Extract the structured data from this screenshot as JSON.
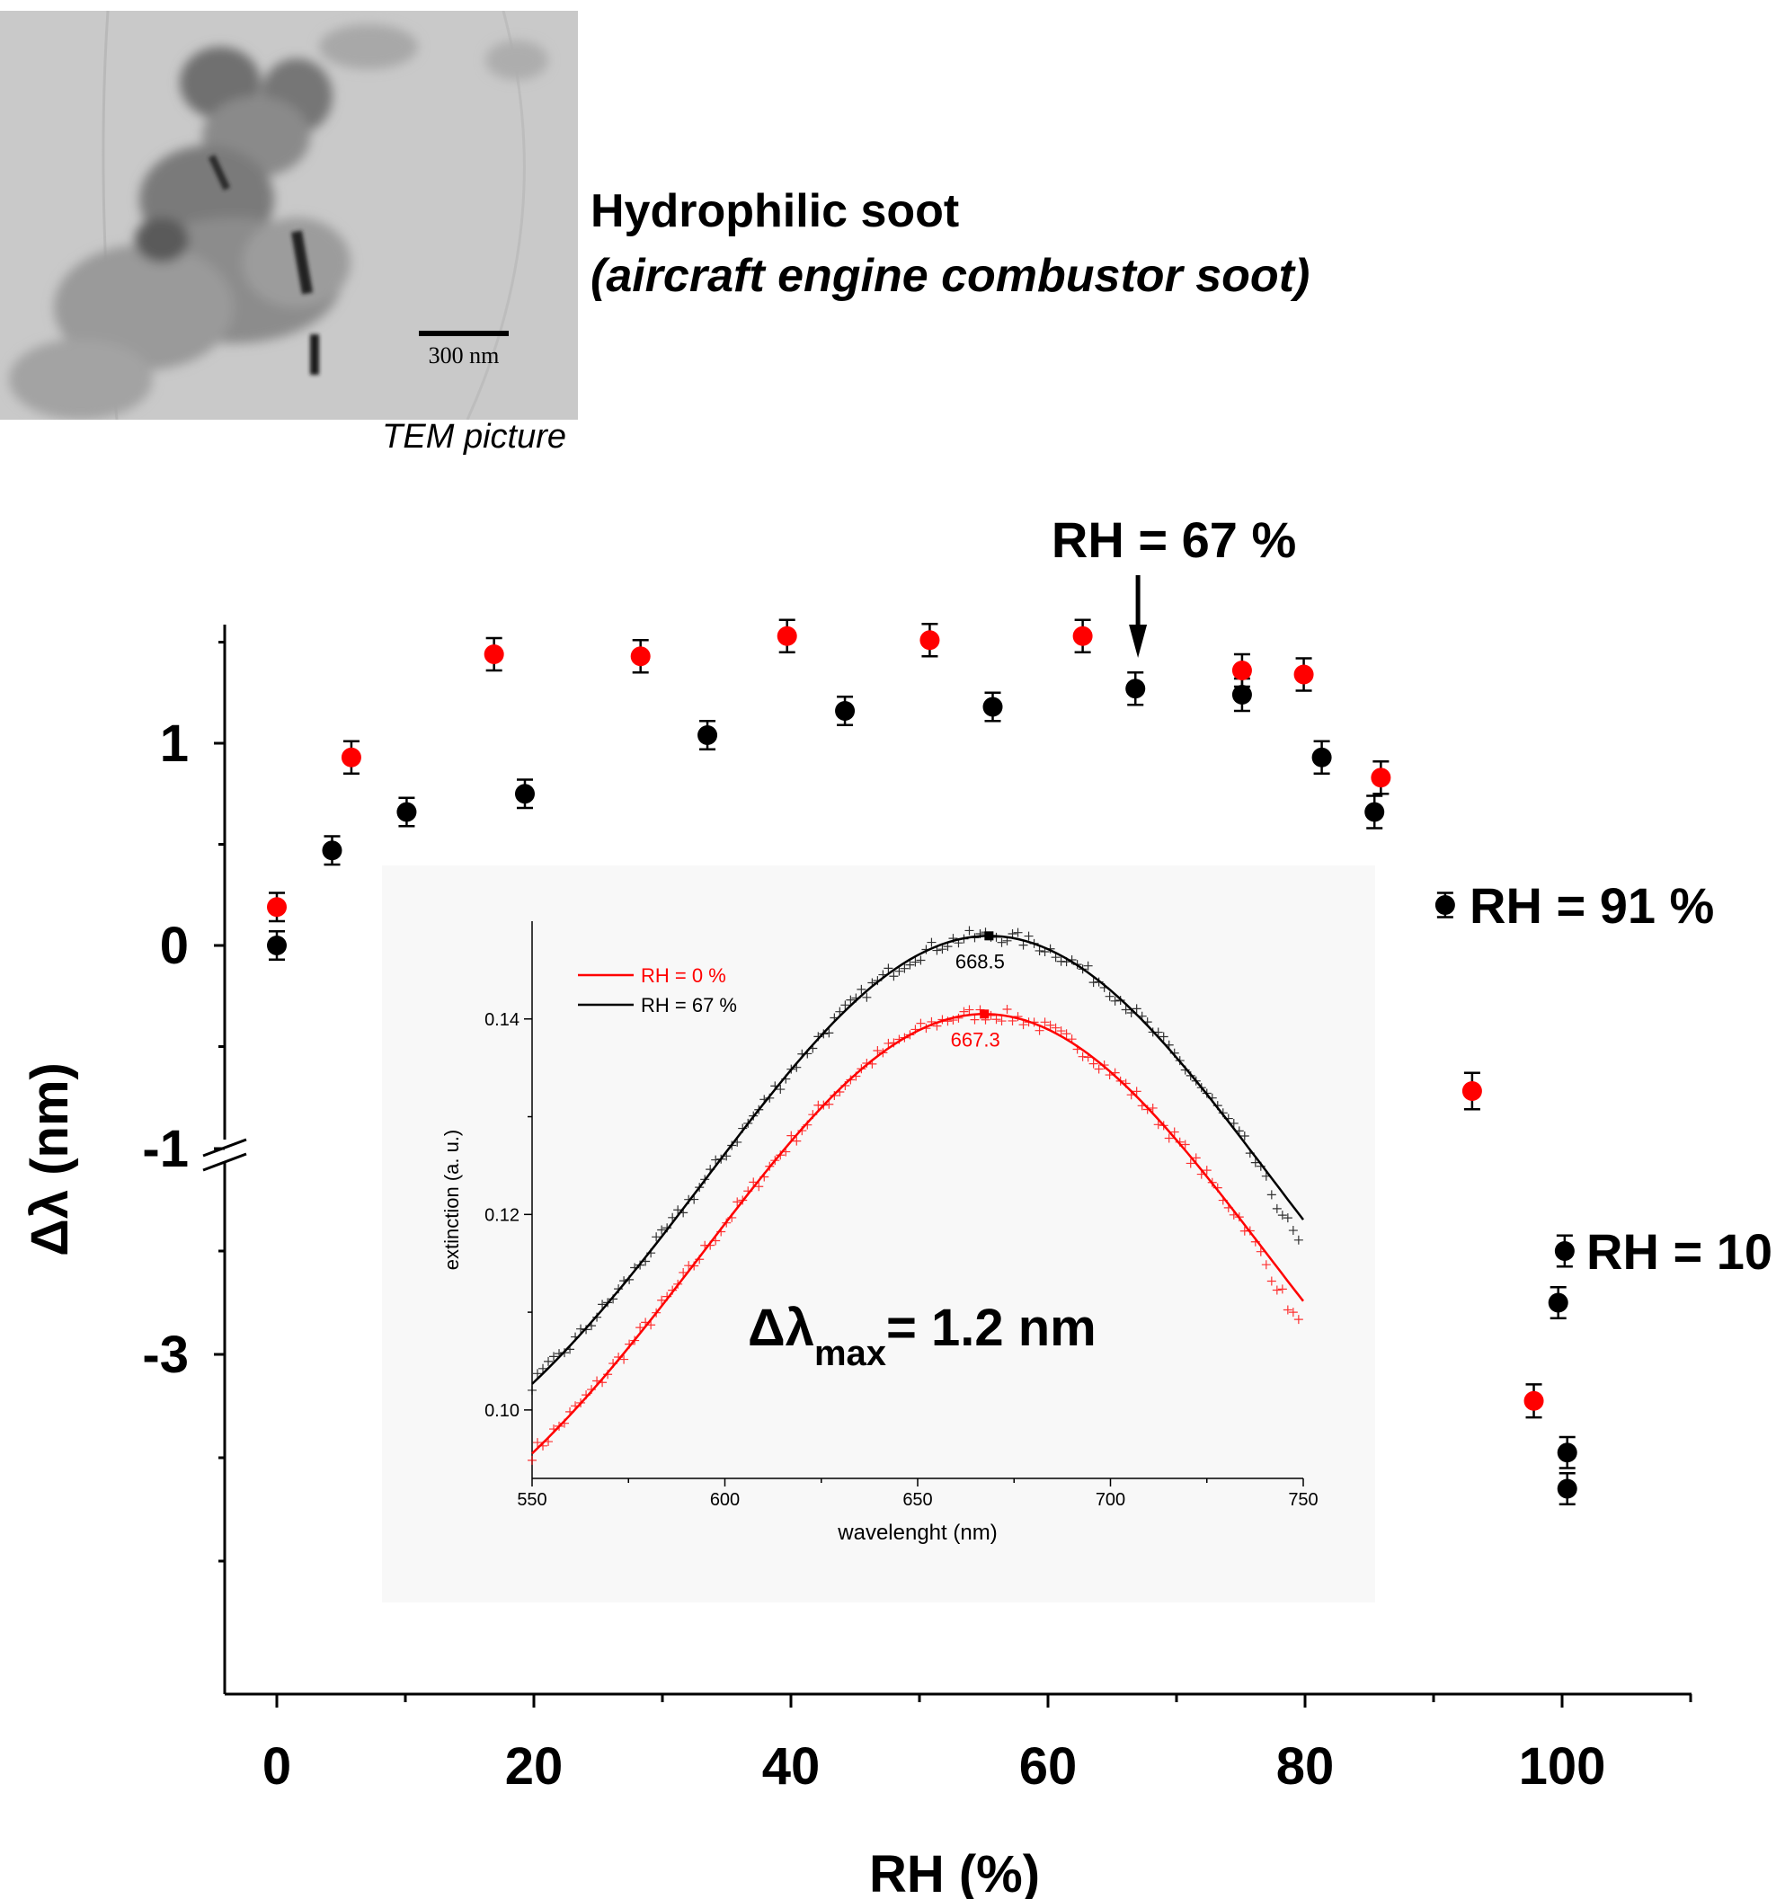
{
  "header": {
    "title": "Hydrophilic soot",
    "subtitle": "(aircraft engine combustor soot)",
    "image_caption": "TEM picture",
    "scale_bar_label": "300 nm"
  },
  "chart_data": [
    {
      "type": "scatter",
      "xlabel": "RH (%)",
      "ylabel": "Δλ (nm)",
      "xlim": [
        -4,
        110
      ],
      "x_ticks": [
        0,
        20,
        40,
        60,
        80,
        100
      ],
      "y_tick_labels": [
        {
          "value": 1,
          "label": "1"
        },
        {
          "value": 0,
          "label": "0"
        },
        {
          "value": -1,
          "label": "-1"
        },
        {
          "value": -3,
          "label": "-3"
        }
      ],
      "y_axis_break": "between 0 and -1",
      "grid": false,
      "series": [
        {
          "color": "#000000",
          "points": [
            {
              "x": 0,
              "y": 0.0,
              "err": 0.07
            },
            {
              "x": 4.3,
              "y": 0.47,
              "err": 0.07
            },
            {
              "x": 10.1,
              "y": 0.66,
              "err": 0.07
            },
            {
              "x": 19.3,
              "y": 0.75,
              "err": 0.07
            },
            {
              "x": 33.5,
              "y": 1.04,
              "err": 0.07
            },
            {
              "x": 44.2,
              "y": 1.16,
              "err": 0.07
            },
            {
              "x": 55.7,
              "y": 1.18,
              "err": 0.07
            },
            {
              "x": 66.8,
              "y": 1.27,
              "err": 0.08
            },
            {
              "x": 75.1,
              "y": 1.24,
              "err": 0.08
            },
            {
              "x": 81.3,
              "y": 0.93,
              "err": 0.08
            },
            {
              "x": 85.4,
              "y": 0.66,
              "err": 0.08
            },
            {
              "x": 90.9,
              "y": 0.2,
              "err": 0.06
            },
            {
              "x": 100.2,
              "y": -2.0,
              "err": 0.15
            },
            {
              "x": 99.7,
              "y": -2.5,
              "err": 0.15
            },
            {
              "x": 100.4,
              "y": -3.95,
              "err": 0.15
            },
            {
              "x": 100.4,
              "y": -4.3,
              "err": 0.15
            }
          ]
        },
        {
          "color": "#ff0000",
          "points": [
            {
              "x": 0,
              "y": 0.19,
              "err": 0.07
            },
            {
              "x": 5.8,
              "y": 0.93,
              "err": 0.08
            },
            {
              "x": 16.9,
              "y": 1.44,
              "err": 0.08
            },
            {
              "x": 28.3,
              "y": 1.43,
              "err": 0.08
            },
            {
              "x": 39.7,
              "y": 1.53,
              "err": 0.08
            },
            {
              "x": 50.8,
              "y": 1.51,
              "err": 0.08
            },
            {
              "x": 62.7,
              "y": 1.53,
              "err": 0.08
            },
            {
              "x": 75.1,
              "y": 1.36,
              "err": 0.08
            },
            {
              "x": 79.9,
              "y": 1.34,
              "err": 0.08
            },
            {
              "x": 85.9,
              "y": 0.83,
              "err": 0.08
            },
            {
              "x": 93.0,
              "y": -0.72,
              "err": 0.09
            },
            {
              "x": 97.8,
              "y": -3.45,
              "err": 0.16
            }
          ]
        }
      ],
      "annotations": [
        {
          "text": "RH = 67 %",
          "x": 67,
          "y": 2.0,
          "arrow_to_y": 1.45
        },
        {
          "text": "RH = 91 %",
          "x": 92,
          "y": 0.2
        },
        {
          "text": "RH = 10",
          "x": 101,
          "y": -2.0
        }
      ]
    },
    {
      "type": "scatter",
      "xlabel": "wavelenght (nm)",
      "ylabel": "extinction (a. u.)",
      "xlim": [
        550,
        750
      ],
      "ylim": [
        0.093,
        0.15
      ],
      "x_ticks": [
        550,
        600,
        650,
        700,
        750
      ],
      "y_ticks": [
        0.1,
        0.12,
        0.14
      ],
      "y_tick_labels": [
        "0.10",
        "0.12",
        "0.14"
      ],
      "legend": "top-left",
      "series": [
        {
          "name": "RH = 0 %",
          "color": "#ff0000",
          "fit_peak": {
            "x": 667.3,
            "y": 0.1405
          },
          "fit_width": 73,
          "baseline": 0.0785,
          "x": [
            550,
            575,
            600,
            625,
            650,
            667.3,
            675,
            700,
            725,
            750
          ],
          "y": [
            0.0963,
            0.1055,
            0.1192,
            0.1318,
            0.1392,
            0.1405,
            0.1402,
            0.135,
            0.1212,
            0.1066
          ]
        },
        {
          "name": "RH = 67 %",
          "color": "#000000",
          "fit_peak": {
            "x": 668.5,
            "y": 0.1485
          },
          "fit_width": 73,
          "baseline": 0.0859,
          "x": [
            550,
            575,
            600,
            625,
            650,
            668.5,
            675,
            700,
            725,
            750
          ],
          "y": [
            0.1058,
            0.1144,
            0.1279,
            0.14,
            0.1472,
            0.1485,
            0.1482,
            0.1434,
            0.1303,
            0.116
          ]
        }
      ],
      "annotations": [
        {
          "text": "668.5",
          "x": 668.5,
          "y": 0.1485,
          "color": "#000000"
        },
        {
          "text": "667.3",
          "x": 667.3,
          "y": 0.1405,
          "color": "#ff0000"
        },
        {
          "text": "Δλmax= 1.2 nm",
          "main": "Δλ",
          "sub": "max",
          "tail": "= 1.2 nm"
        }
      ]
    }
  ]
}
